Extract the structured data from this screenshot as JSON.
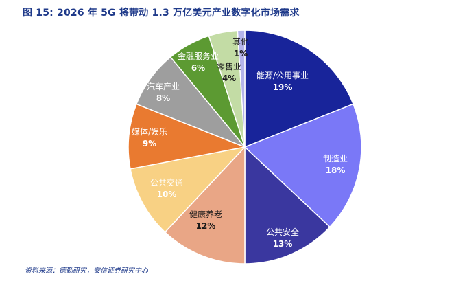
{
  "header": {
    "title": "图 15: 2026 年 5G 将带动 1.3 万亿美元产业数字化市场需求"
  },
  "footer": {
    "source": "资料来源：德勤研究，安信证券研究中心"
  },
  "chart_data": {
    "type": "pie",
    "title": "图 15: 2026 年 5G 将带动 1.3 万亿美元产业数字化市场需求",
    "start_angle": "12 o'clock, clockwise",
    "slices": [
      {
        "label": "能源/公用事业",
        "value": 19,
        "display": "19%",
        "color": "#18249a",
        "text_color": "#ffffff"
      },
      {
        "label": "制造业",
        "value": 18,
        "display": "18%",
        "color": "#7a78f7",
        "text_color": "#ffffff"
      },
      {
        "label": "公共安全",
        "value": 13,
        "display": "13%",
        "color": "#3a379f",
        "text_color": "#ffffff"
      },
      {
        "label": "健康养老",
        "value": 12,
        "display": "12%",
        "color": "#e9a686",
        "text_color": "#1a1a1a"
      },
      {
        "label": "公共交通",
        "value": 10,
        "display": "10%",
        "color": "#f8d184",
        "text_color": "#ffffff"
      },
      {
        "label": "媒体/娱乐",
        "value": 9,
        "display": "9%",
        "color": "#e97a30",
        "text_color": "#ffffff"
      },
      {
        "label": "汽车产业",
        "value": 8,
        "display": "8%",
        "color": "#9e9e9e",
        "text_color": "#ffffff"
      },
      {
        "label": "金融服务业",
        "value": 6,
        "display": "6%",
        "color": "#5c9a32",
        "text_color": "#ffffff"
      },
      {
        "label": "零售业",
        "value": 4,
        "display": "4%",
        "color": "#c3dca5",
        "text_color": "#1a1a1a"
      },
      {
        "label": "其他",
        "value": 1,
        "display": "1%",
        "color": "#b4b4ea",
        "text_color": "#1a1a1a"
      }
    ]
  }
}
